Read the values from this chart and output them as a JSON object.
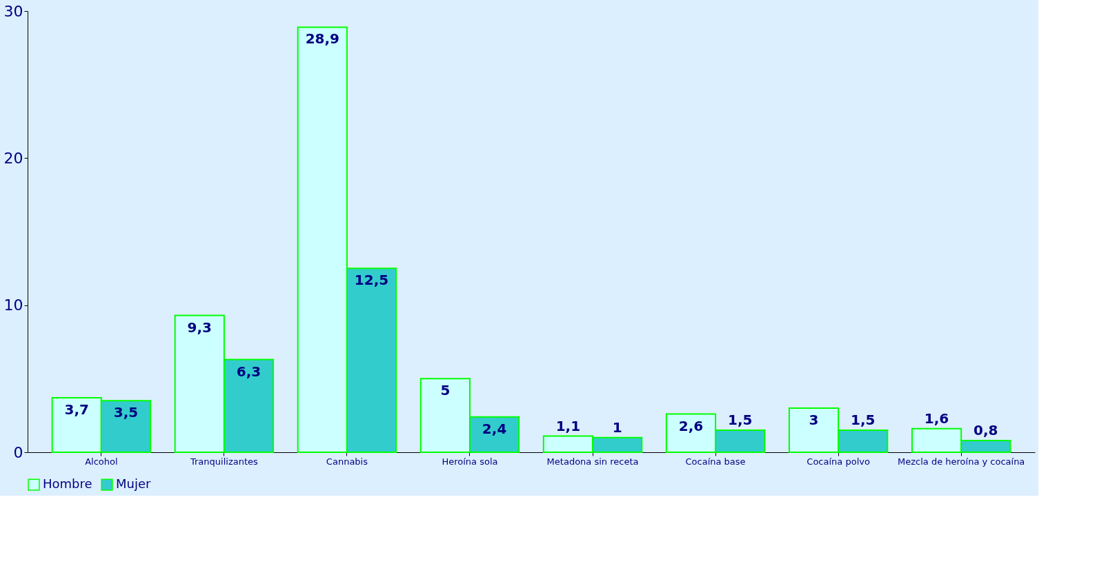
{
  "chart_data": {
    "type": "bar",
    "categories": [
      "Alcohol",
      "Tranquilizantes",
      "Cannabis",
      "Heroína sola",
      "Metadona sin receta",
      "Cocaína base",
      "Cocaína polvo",
      "Mezcla de heroína y cocaína"
    ],
    "series": [
      {
        "name": "Hombre",
        "color": "#ccffff",
        "values": [
          3.7,
          9.3,
          28.9,
          5,
          1.1,
          2.6,
          3,
          1.6
        ],
        "value_labels": [
          "3,7",
          "9,3",
          "28,9",
          "5",
          "1,1",
          "2,6",
          "3",
          "1,6"
        ]
      },
      {
        "name": "Mujer",
        "color": "#33cccc",
        "values": [
          3.5,
          6.3,
          12.5,
          2.4,
          1,
          1.5,
          1.5,
          0.8
        ],
        "value_labels": [
          "3,5",
          "6,3",
          "12,5",
          "2,4",
          "1",
          "1,5",
          "1,5",
          "0,8"
        ]
      }
    ],
    "ylim": [
      0,
      30
    ],
    "yticks": [
      0,
      10,
      20,
      30
    ],
    "grid": false,
    "legend": "bottom"
  }
}
